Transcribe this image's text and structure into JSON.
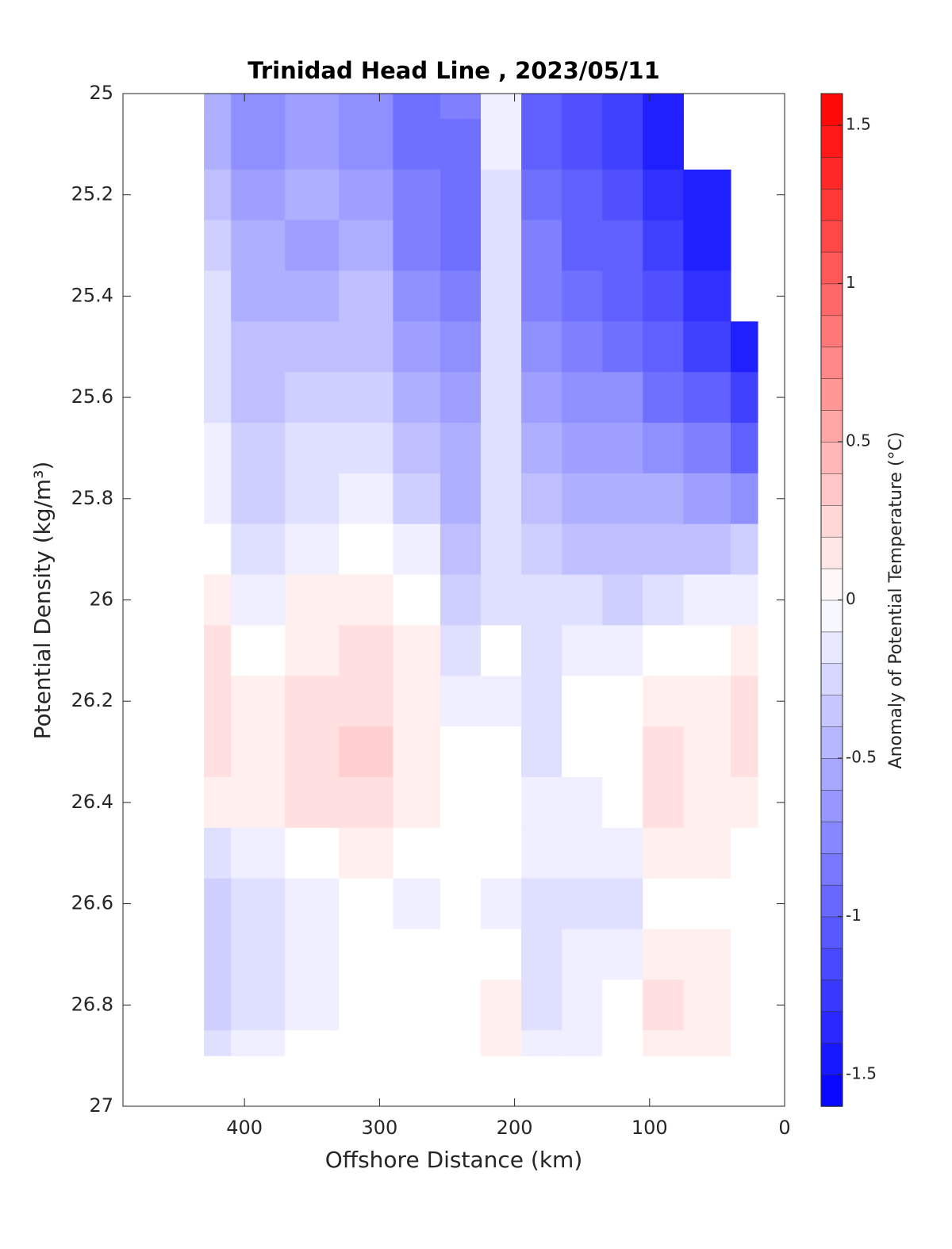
{
  "chart_data": {
    "type": "contourf",
    "title": "Trinidad Head Line , 2023/05/11",
    "xlabel": "Offshore Distance (km)",
    "ylabel": "Potential Density (kg/m³)",
    "xlim": [
      490,
      0
    ],
    "xticks": [
      400,
      300,
      200,
      100,
      0
    ],
    "ylim": [
      25,
      27
    ],
    "yticks": [
      25,
      25.2,
      25.4,
      25.6,
      25.8,
      26,
      26.2,
      26.4,
      26.6,
      26.8,
      27
    ],
    "y_reversed": true,
    "x": [
      430,
      390,
      350,
      310,
      270,
      240,
      210,
      180,
      150,
      120,
      90,
      60,
      20
    ],
    "y": [
      25.0,
      25.1,
      25.2,
      25.3,
      25.4,
      25.5,
      25.6,
      25.7,
      25.8,
      25.9,
      26.0,
      26.1,
      26.2,
      26.3,
      26.4,
      26.5,
      26.6,
      26.7,
      26.8,
      26.9
    ],
    "z": [
      [
        -0.5,
        -0.7,
        -0.6,
        -0.7,
        -0.9,
        -0.8,
        -0.1,
        -1.0,
        -1.1,
        -1.2,
        -1.4,
        null,
        null
      ],
      [
        -0.5,
        -0.7,
        -0.6,
        -0.7,
        -0.9,
        -0.9,
        -0.1,
        -1.0,
        -1.1,
        -1.2,
        -1.4,
        null,
        null
      ],
      [
        -0.4,
        -0.6,
        -0.5,
        -0.6,
        -0.8,
        -0.9,
        -0.2,
        -0.9,
        -1.0,
        -1.1,
        -1.3,
        -1.4,
        null
      ],
      [
        -0.3,
        -0.5,
        -0.6,
        -0.5,
        -0.8,
        -0.9,
        -0.2,
        -0.8,
        -1.0,
        -1.0,
        -1.2,
        -1.4,
        null
      ],
      [
        -0.2,
        -0.5,
        -0.5,
        -0.4,
        -0.7,
        -0.8,
        -0.2,
        -0.8,
        -0.9,
        -1.0,
        -1.1,
        -1.3,
        null
      ],
      [
        -0.2,
        -0.4,
        -0.4,
        -0.4,
        -0.6,
        -0.7,
        -0.2,
        -0.7,
        -0.8,
        -0.9,
        -1.0,
        -1.2,
        -1.4
      ],
      [
        -0.2,
        -0.4,
        -0.3,
        -0.3,
        -0.5,
        -0.6,
        -0.2,
        -0.6,
        -0.7,
        -0.7,
        -0.9,
        -1.0,
        -1.2
      ],
      [
        -0.1,
        -0.3,
        -0.2,
        -0.2,
        -0.4,
        -0.5,
        -0.2,
        -0.5,
        -0.6,
        -0.6,
        -0.7,
        -0.8,
        -1.0
      ],
      [
        -0.1,
        -0.3,
        -0.2,
        -0.1,
        -0.3,
        -0.5,
        -0.2,
        -0.4,
        -0.5,
        -0.5,
        -0.5,
        -0.6,
        -0.7
      ],
      [
        0.0,
        -0.2,
        -0.1,
        0.0,
        -0.1,
        -0.4,
        -0.2,
        -0.3,
        -0.4,
        -0.4,
        -0.4,
        -0.4,
        -0.3
      ],
      [
        0.1,
        -0.1,
        0.1,
        0.1,
        0.0,
        -0.3,
        -0.2,
        -0.2,
        -0.2,
        -0.3,
        -0.2,
        -0.1,
        -0.1
      ],
      [
        0.2,
        0.0,
        0.1,
        0.2,
        0.1,
        -0.2,
        0.0,
        -0.2,
        -0.1,
        -0.1,
        0.0,
        0.0,
        0.1
      ],
      [
        0.2,
        0.1,
        0.2,
        0.2,
        0.1,
        -0.1,
        -0.1,
        -0.2,
        0.0,
        0.0,
        0.1,
        0.1,
        0.2
      ],
      [
        0.2,
        0.1,
        0.2,
        0.3,
        0.1,
        0.0,
        0.0,
        -0.2,
        0.0,
        0.0,
        0.2,
        0.1,
        0.2
      ],
      [
        0.1,
        0.1,
        0.2,
        0.2,
        0.1,
        0.0,
        0.0,
        -0.1,
        -0.1,
        0.0,
        0.2,
        0.1,
        0.1
      ],
      [
        -0.2,
        -0.1,
        0.0,
        0.1,
        0.0,
        0.0,
        0.0,
        -0.1,
        -0.1,
        -0.1,
        0.1,
        0.1,
        0.0
      ],
      [
        -0.3,
        -0.2,
        -0.1,
        0.0,
        -0.1,
        0.0,
        -0.1,
        -0.2,
        -0.2,
        -0.2,
        0.0,
        0.0,
        0.0
      ],
      [
        -0.3,
        -0.2,
        -0.1,
        0.0,
        0.0,
        0.0,
        0.0,
        -0.2,
        -0.1,
        -0.1,
        0.1,
        0.1,
        0.0
      ],
      [
        -0.3,
        -0.2,
        -0.1,
        0.0,
        0.0,
        0.0,
        0.1,
        -0.2,
        -0.1,
        0.0,
        0.2,
        0.1,
        0.0
      ],
      [
        -0.2,
        -0.1,
        0.0,
        0.0,
        0.0,
        0.0,
        0.1,
        -0.1,
        -0.1,
        0.0,
        0.1,
        0.1,
        0.0
      ]
    ],
    "colorbar": {
      "label": "Anomaly of Potential Temperature (°C)",
      "clim": [
        -1.6,
        1.6
      ],
      "level_step": 0.1,
      "ticks": [
        -1.5,
        -1,
        -0.5,
        0,
        0.5,
        1,
        1.5
      ],
      "low_color": "#0000ff",
      "high_color": "#ff0000"
    }
  }
}
